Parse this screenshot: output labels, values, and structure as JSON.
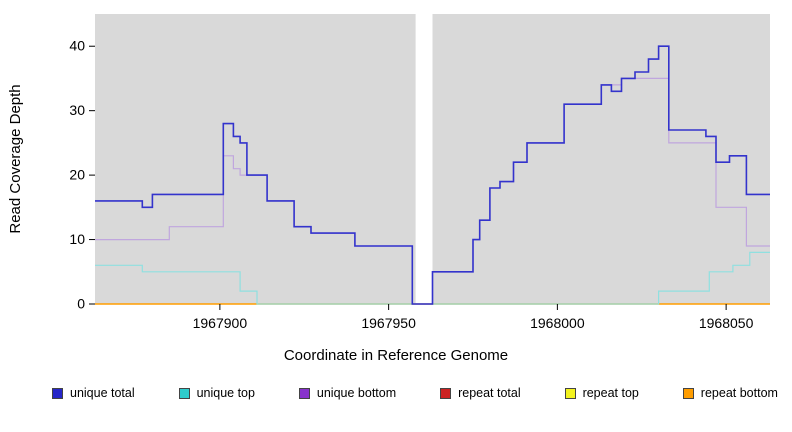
{
  "chart_data": {
    "type": "line",
    "subtype": "step",
    "title": "",
    "xlabel": "Coordinate in Reference Genome",
    "ylabel": "Read Coverage Depth",
    "xlim": [
      1967863,
      1968063
    ],
    "ylim": [
      0,
      45
    ],
    "x_ticks": [
      1967900,
      1967950,
      1968000,
      1968050
    ],
    "y_ticks": [
      0,
      10,
      20,
      30,
      40
    ],
    "grid": false,
    "background": "#d9d9d9",
    "gap_band": {
      "x_start": 1967958,
      "x_end": 1967963,
      "color": "#ffffff"
    },
    "legend_position": "bottom",
    "series": [
      {
        "name": "repeat total",
        "color": "#cc2222",
        "width": 1.0,
        "points": [
          [
            1967863,
            0
          ],
          [
            1968063,
            0
          ]
        ]
      },
      {
        "name": "repeat top",
        "color": "#f2f21e",
        "width": 1.0,
        "points": [
          [
            1967863,
            0
          ],
          [
            1968063,
            0
          ]
        ]
      },
      {
        "name": "repeat bottom",
        "color": "#ff9d00",
        "width": 1.5,
        "points": [
          [
            1967863,
            0
          ],
          [
            1968063,
            0
          ]
        ]
      },
      {
        "name": "unique bottom",
        "color": "#c0a6de",
        "width": 1.2,
        "points": [
          [
            1967863,
            10
          ],
          [
            1967885,
            12
          ],
          [
            1967901,
            23
          ],
          [
            1967904,
            21
          ],
          [
            1967906,
            20
          ],
          [
            1967914,
            16
          ],
          [
            1967922,
            12
          ],
          [
            1967927,
            11
          ],
          [
            1967940,
            9
          ],
          [
            1967957,
            0
          ],
          [
            1967963,
            5
          ],
          [
            1967975,
            10
          ],
          [
            1967977,
            13
          ],
          [
            1967980,
            18
          ],
          [
            1967983,
            19
          ],
          [
            1967987,
            22
          ],
          [
            1967991,
            25
          ],
          [
            1968002,
            31
          ],
          [
            1968013,
            34
          ],
          [
            1968019,
            35
          ],
          [
            1968033,
            25
          ],
          [
            1968044,
            25
          ],
          [
            1968047,
            15
          ],
          [
            1968056,
            9
          ],
          [
            1968063,
            9
          ]
        ]
      },
      {
        "name": "unique top",
        "color": "#8fe0e0",
        "width": 1.2,
        "points": [
          [
            1967863,
            6
          ],
          [
            1967877,
            5
          ],
          [
            1967906,
            2
          ],
          [
            1967911,
            0
          ],
          [
            1968030,
            2
          ],
          [
            1968045,
            5
          ],
          [
            1968052,
            6
          ],
          [
            1968057,
            8
          ],
          [
            1968063,
            8
          ]
        ]
      },
      {
        "name": "unique total",
        "color": "#3333cc",
        "width": 1.6,
        "points": [
          [
            1967863,
            16
          ],
          [
            1967877,
            15
          ],
          [
            1967880,
            17
          ],
          [
            1967901,
            28
          ],
          [
            1967904,
            26
          ],
          [
            1967906,
            25
          ],
          [
            1967908,
            20
          ],
          [
            1967914,
            16
          ],
          [
            1967922,
            12
          ],
          [
            1967927,
            11
          ],
          [
            1967940,
            9
          ],
          [
            1967957,
            0
          ],
          [
            1967963,
            5
          ],
          [
            1967975,
            10
          ],
          [
            1967977,
            13
          ],
          [
            1967980,
            18
          ],
          [
            1967983,
            19
          ],
          [
            1967987,
            22
          ],
          [
            1967991,
            25
          ],
          [
            1968002,
            31
          ],
          [
            1968013,
            34
          ],
          [
            1968016,
            33
          ],
          [
            1968019,
            35
          ],
          [
            1968023,
            36
          ],
          [
            1968027,
            38
          ],
          [
            1968030,
            40
          ],
          [
            1968033,
            27
          ],
          [
            1968044,
            26
          ],
          [
            1968047,
            22
          ],
          [
            1968051,
            23
          ],
          [
            1968056,
            17
          ],
          [
            1968063,
            17
          ]
        ]
      }
    ],
    "legend": [
      {
        "label": "unique total",
        "color": "#2626c9"
      },
      {
        "label": "unique top",
        "color": "#2ecccc"
      },
      {
        "label": "unique bottom",
        "color": "#8833cc"
      },
      {
        "label": "repeat total",
        "color": "#cc2222"
      },
      {
        "label": "repeat top",
        "color": "#f2f21e"
      },
      {
        "label": "repeat bottom",
        "color": "#ff9d00"
      }
    ]
  }
}
